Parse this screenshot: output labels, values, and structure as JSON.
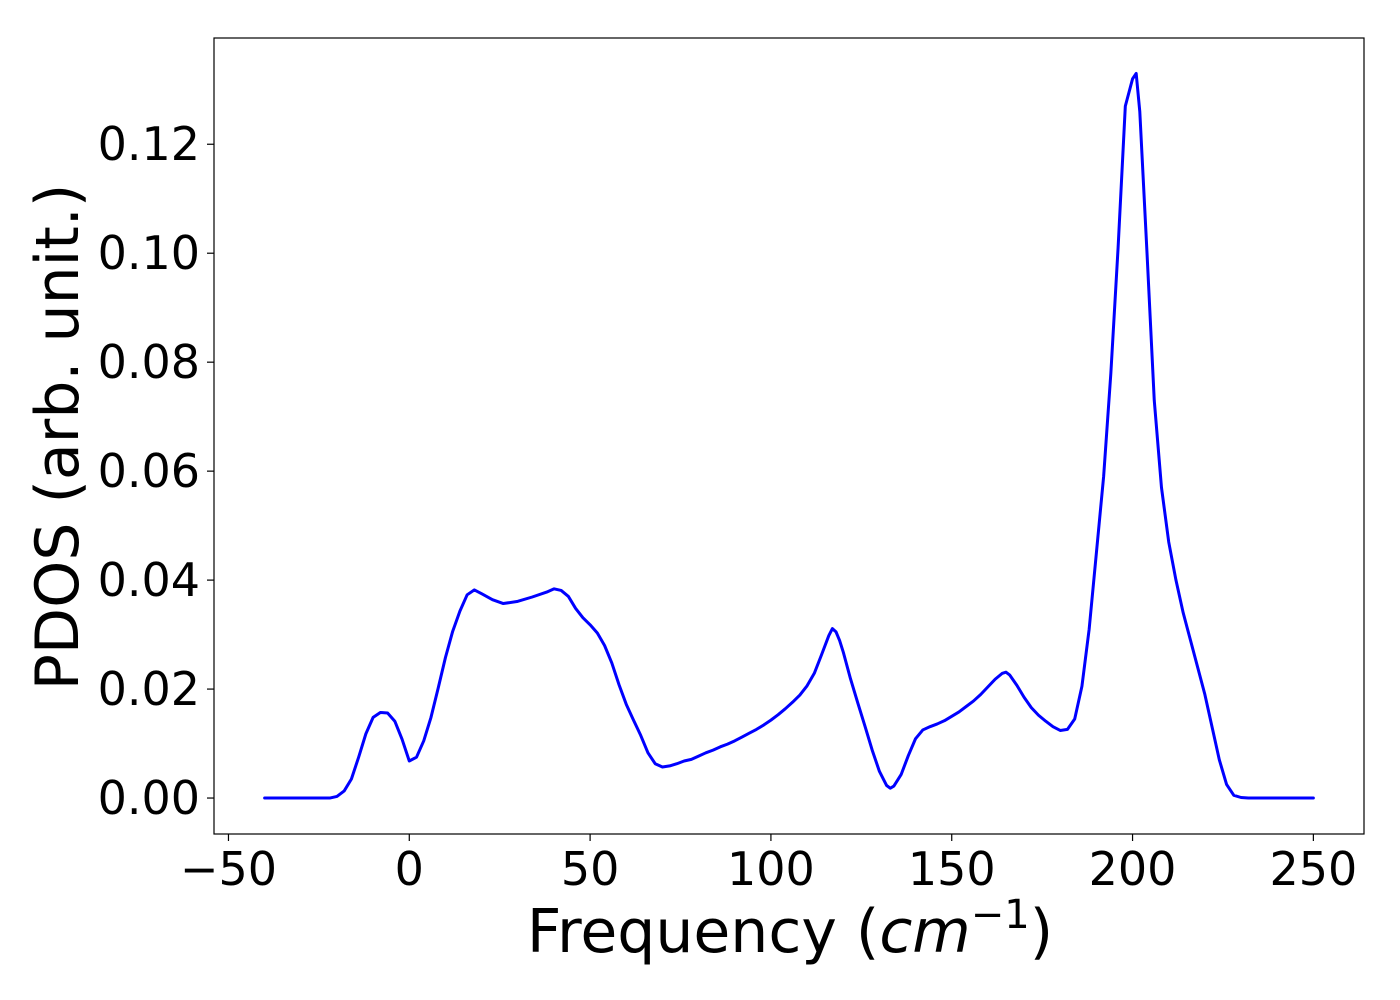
{
  "chart_data": {
    "type": "line",
    "xlabel": "Frequency (",
    "xlabel_math": "cm",
    "xlabel_exponent": "−1",
    "xlabel_close": ")",
    "ylabel": "PDOS (arb. unit.)",
    "xlim": [
      -54,
      264
    ],
    "ylim": [
      -0.0066,
      0.1395
    ],
    "xticks": [
      -50,
      0,
      50,
      100,
      150,
      200,
      250
    ],
    "xtick_labels": [
      "−50",
      "0",
      "50",
      "100",
      "150",
      "200",
      "250"
    ],
    "yticks": [
      0.0,
      0.02,
      0.04,
      0.06,
      0.08,
      0.1,
      0.12
    ],
    "ytick_labels": [
      "0.00",
      "0.02",
      "0.04",
      "0.06",
      "0.08",
      "0.10",
      "0.12"
    ],
    "grid": false,
    "series": [
      {
        "color": "#0000ff",
        "x": [
          -40,
          -30,
          -22,
          -20,
          -18,
          -16,
          -14,
          -12,
          -10,
          -8,
          -6,
          -4,
          -2,
          0,
          2,
          4,
          6,
          8,
          10,
          12,
          14,
          16,
          18,
          20,
          23,
          26,
          30,
          34,
          38,
          40,
          42,
          44,
          46,
          48,
          50,
          52,
          54,
          56,
          58,
          60,
          62,
          64,
          66,
          68,
          70,
          72,
          74,
          76,
          78,
          80,
          82,
          84,
          86,
          88,
          90,
          92,
          94,
          96,
          98,
          100,
          102,
          104,
          106,
          108,
          110,
          112,
          114,
          116,
          117,
          118,
          119,
          120,
          122,
          124,
          126,
          128,
          130,
          132,
          133,
          134,
          136,
          138,
          140,
          142,
          144,
          146,
          148,
          150,
          152,
          154,
          156,
          158,
          160,
          162,
          164,
          165,
          166,
          168,
          170,
          172,
          174,
          176,
          178,
          180,
          182,
          184,
          186,
          188,
          190,
          192,
          194,
          196,
          198,
          200,
          201,
          202,
          204,
          206,
          208,
          210,
          212,
          214,
          216,
          218,
          220,
          222,
          224,
          226,
          228,
          230,
          232,
          240,
          250
        ],
        "y": [
          0,
          0,
          0,
          0.0003,
          0.0013,
          0.0035,
          0.0075,
          0.0118,
          0.0148,
          0.0157,
          0.0156,
          0.0141,
          0.0108,
          0.0068,
          0.0075,
          0.0105,
          0.0148,
          0.0202,
          0.0258,
          0.0306,
          0.0343,
          0.0373,
          0.0382,
          0.0375,
          0.0364,
          0.0357,
          0.0361,
          0.0369,
          0.0378,
          0.0384,
          0.0381,
          0.037,
          0.0348,
          0.0331,
          0.0318,
          0.0303,
          0.028,
          0.0248,
          0.0208,
          0.0172,
          0.0143,
          0.0115,
          0.0083,
          0.0063,
          0.0057,
          0.0059,
          0.0063,
          0.0068,
          0.0071,
          0.0077,
          0.0083,
          0.0088,
          0.0094,
          0.0099,
          0.0105,
          0.0112,
          0.0119,
          0.0126,
          0.0134,
          0.0143,
          0.0153,
          0.0164,
          0.0176,
          0.0189,
          0.0206,
          0.0229,
          0.0263,
          0.0298,
          0.0311,
          0.0305,
          0.0289,
          0.0268,
          0.0219,
          0.0175,
          0.0132,
          0.0088,
          0.0049,
          0.0023,
          0.0018,
          0.0022,
          0.0043,
          0.0078,
          0.0109,
          0.0125,
          0.0131,
          0.0136,
          0.0142,
          0.015,
          0.0158,
          0.0168,
          0.0178,
          0.019,
          0.0204,
          0.0218,
          0.0229,
          0.0231,
          0.0226,
          0.0207,
          0.0185,
          0.0166,
          0.0152,
          0.0141,
          0.0131,
          0.0124,
          0.0126,
          0.0145,
          0.0205,
          0.031,
          0.045,
          0.059,
          0.078,
          0.101,
          0.127,
          0.132,
          0.133,
          0.126,
          0.1,
          0.073,
          0.057,
          0.047,
          0.04,
          0.034,
          0.029,
          0.024,
          0.019,
          0.013,
          0.007,
          0.0025,
          0.0005,
          0.0001,
          0,
          0,
          0
        ]
      }
    ]
  }
}
